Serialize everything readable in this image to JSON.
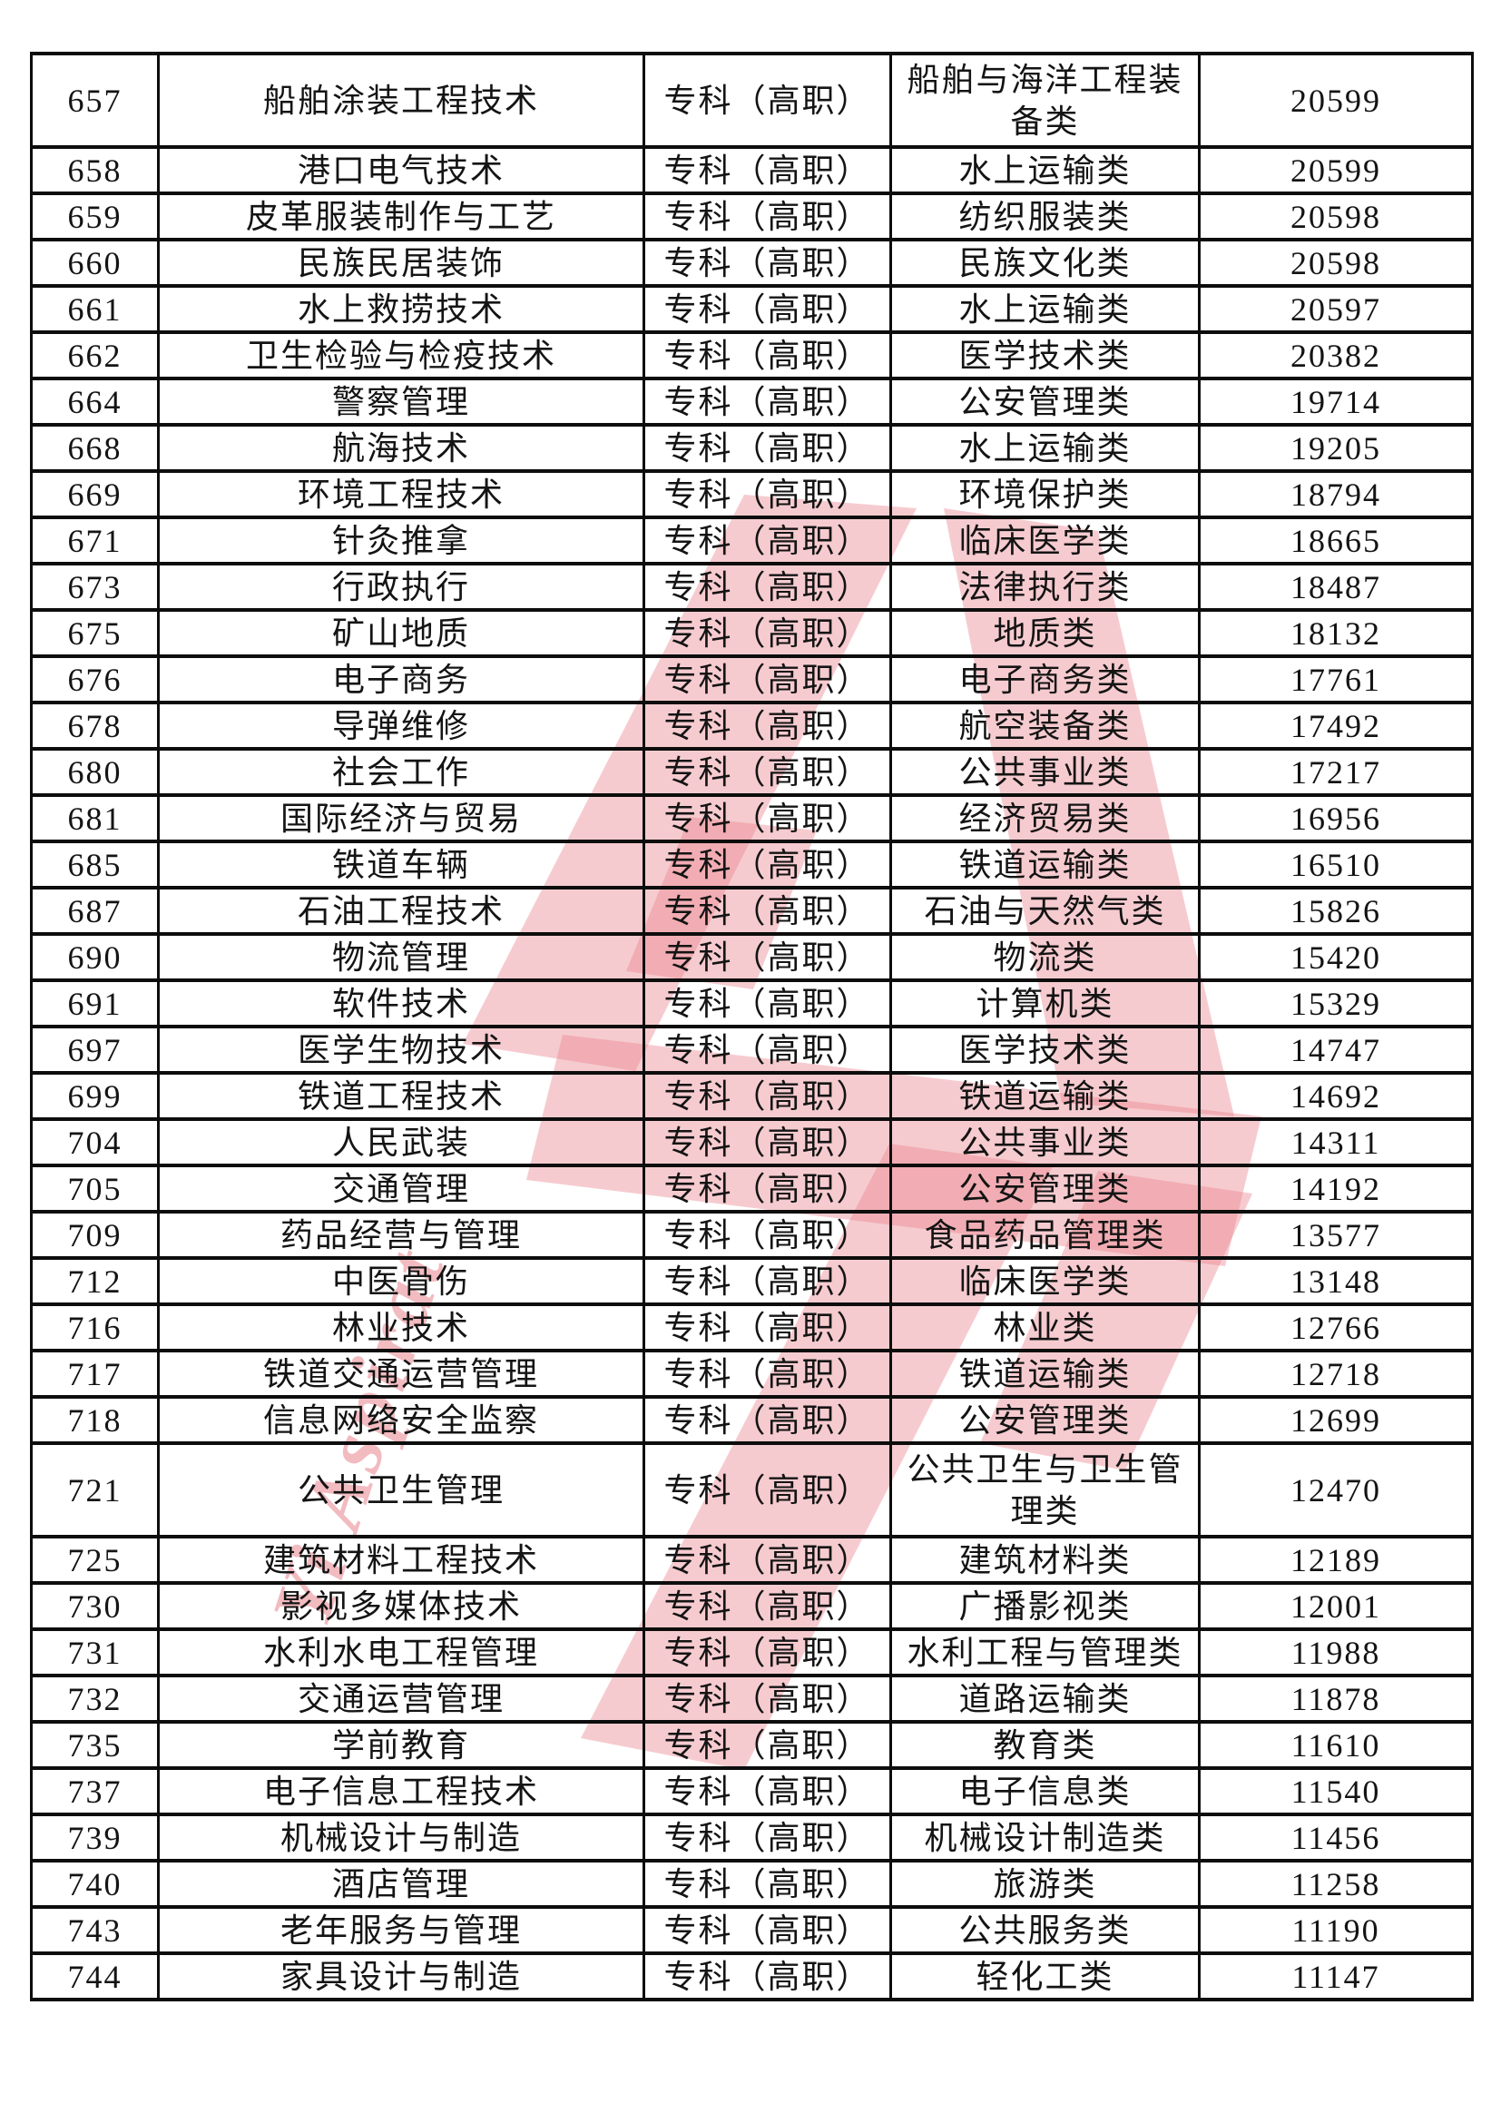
{
  "page": {
    "background": "#ffffff",
    "border_color": "#0d0d0d"
  },
  "watermark": {
    "text": "Yi Aspirat",
    "color": "#e2606a"
  },
  "table": {
    "level_value": "专科（高职）",
    "rows": [
      {
        "no": "657",
        "major": "船舶涂装工程技术",
        "level": "专科（高职）",
        "category": "船舶与海洋工程装备类",
        "value": "20599",
        "tall": true
      },
      {
        "no": "658",
        "major": "港口电气技术",
        "level": "专科（高职）",
        "category": "水上运输类",
        "value": "20599"
      },
      {
        "no": "659",
        "major": "皮革服装制作与工艺",
        "level": "专科（高职）",
        "category": "纺织服装类",
        "value": "20598"
      },
      {
        "no": "660",
        "major": "民族民居装饰",
        "level": "专科（高职）",
        "category": "民族文化类",
        "value": "20598"
      },
      {
        "no": "661",
        "major": "水上救捞技术",
        "level": "专科（高职）",
        "category": "水上运输类",
        "value": "20597"
      },
      {
        "no": "662",
        "major": "卫生检验与检疫技术",
        "level": "专科（高职）",
        "category": "医学技术类",
        "value": "20382"
      },
      {
        "no": "664",
        "major": "警察管理",
        "level": "专科（高职）",
        "category": "公安管理类",
        "value": "19714"
      },
      {
        "no": "668",
        "major": "航海技术",
        "level": "专科（高职）",
        "category": "水上运输类",
        "value": "19205"
      },
      {
        "no": "669",
        "major": "环境工程技术",
        "level": "专科（高职）",
        "category": "环境保护类",
        "value": "18794"
      },
      {
        "no": "671",
        "major": "针灸推拿",
        "level": "专科（高职）",
        "category": "临床医学类",
        "value": "18665"
      },
      {
        "no": "673",
        "major": "行政执行",
        "level": "专科（高职）",
        "category": "法律执行类",
        "value": "18487"
      },
      {
        "no": "675",
        "major": "矿山地质",
        "level": "专科（高职）",
        "category": "地质类",
        "value": "18132"
      },
      {
        "no": "676",
        "major": "电子商务",
        "level": "专科（高职）",
        "category": "电子商务类",
        "value": "17761"
      },
      {
        "no": "678",
        "major": "导弹维修",
        "level": "专科（高职）",
        "category": "航空装备类",
        "value": "17492"
      },
      {
        "no": "680",
        "major": "社会工作",
        "level": "专科（高职）",
        "category": "公共事业类",
        "value": "17217"
      },
      {
        "no": "681",
        "major": "国际经济与贸易",
        "level": "专科（高职）",
        "category": "经济贸易类",
        "value": "16956"
      },
      {
        "no": "685",
        "major": "铁道车辆",
        "level": "专科（高职）",
        "category": "铁道运输类",
        "value": "16510"
      },
      {
        "no": "687",
        "major": "石油工程技术",
        "level": "专科（高职）",
        "category": "石油与天然气类",
        "value": "15826"
      },
      {
        "no": "690",
        "major": "物流管理",
        "level": "专科（高职）",
        "category": "物流类",
        "value": "15420"
      },
      {
        "no": "691",
        "major": "软件技术",
        "level": "专科（高职）",
        "category": "计算机类",
        "value": "15329"
      },
      {
        "no": "697",
        "major": "医学生物技术",
        "level": "专科（高职）",
        "category": "医学技术类",
        "value": "14747"
      },
      {
        "no": "699",
        "major": "铁道工程技术",
        "level": "专科（高职）",
        "category": "铁道运输类",
        "value": "14692"
      },
      {
        "no": "704",
        "major": "人民武装",
        "level": "专科（高职）",
        "category": "公共事业类",
        "value": "14311"
      },
      {
        "no": "705",
        "major": "交通管理",
        "level": "专科（高职）",
        "category": "公安管理类",
        "value": "14192"
      },
      {
        "no": "709",
        "major": "药品经营与管理",
        "level": "专科（高职）",
        "category": "食品药品管理类",
        "value": "13577"
      },
      {
        "no": "712",
        "major": "中医骨伤",
        "level": "专科（高职）",
        "category": "临床医学类",
        "value": "13148"
      },
      {
        "no": "716",
        "major": "林业技术",
        "level": "专科（高职）",
        "category": "林业类",
        "value": "12766"
      },
      {
        "no": "717",
        "major": "铁道交通运营管理",
        "level": "专科（高职）",
        "category": "铁道运输类",
        "value": "12718"
      },
      {
        "no": "718",
        "major": "信息网络安全监察",
        "level": "专科（高职）",
        "category": "公安管理类",
        "value": "12699"
      },
      {
        "no": "721",
        "major": "公共卫生管理",
        "level": "专科（高职）",
        "category": "公共卫生与卫生管理类",
        "value": "12470",
        "tall": true
      },
      {
        "no": "725",
        "major": "建筑材料工程技术",
        "level": "专科（高职）",
        "category": "建筑材料类",
        "value": "12189"
      },
      {
        "no": "730",
        "major": "影视多媒体技术",
        "level": "专科（高职）",
        "category": "广播影视类",
        "value": "12001"
      },
      {
        "no": "731",
        "major": "水利水电工程管理",
        "level": "专科（高职）",
        "category": "水利工程与管理类",
        "value": "11988"
      },
      {
        "no": "732",
        "major": "交通运营管理",
        "level": "专科（高职）",
        "category": "道路运输类",
        "value": "11878"
      },
      {
        "no": "735",
        "major": "学前教育",
        "level": "专科（高职）",
        "category": "教育类",
        "value": "11610"
      },
      {
        "no": "737",
        "major": "电子信息工程技术",
        "level": "专科（高职）",
        "category": "电子信息类",
        "value": "11540"
      },
      {
        "no": "739",
        "major": "机械设计与制造",
        "level": "专科（高职）",
        "category": "机械设计制造类",
        "value": "11456"
      },
      {
        "no": "740",
        "major": "酒店管理",
        "level": "专科（高职）",
        "category": "旅游类",
        "value": "11258"
      },
      {
        "no": "743",
        "major": "老年服务与管理",
        "level": "专科（高职）",
        "category": "公共服务类",
        "value": "11190"
      },
      {
        "no": "744",
        "major": "家具设计与制造",
        "level": "专科（高职）",
        "category": "轻化工类",
        "value": "11147"
      }
    ]
  }
}
